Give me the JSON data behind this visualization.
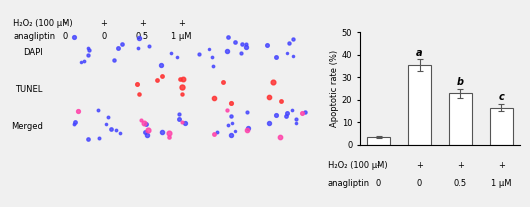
{
  "values": [
    3.5,
    35.5,
    23.0,
    16.5
  ],
  "errors": [
    0.5,
    2.5,
    2.0,
    1.5
  ],
  "bar_color": "#ffffff",
  "bar_edgecolor": "#555555",
  "bar_linewidth": 0.8,
  "ylim": [
    0,
    50
  ],
  "yticks": [
    0,
    10,
    20,
    30,
    40,
    50
  ],
  "ylabel": "Apoptotic rate (%)",
  "ylabel_fontsize": 6,
  "tick_fontsize": 6,
  "bar_width": 0.55,
  "bar_annotations": [
    "",
    "a",
    "b",
    "c"
  ],
  "annotation_fontsize": 7,
  "x_row1_label": "H₂O₂ (100 μM)",
  "x_row1_values": [
    "-",
    "+",
    "+",
    "+"
  ],
  "x_row2_label": "anagliptin",
  "x_row2_values": [
    "0",
    "0",
    "0.5",
    "1 μM"
  ],
  "xrow_fontsize": 6,
  "errorbar_color": "#555555",
  "errorbar_capsize": 2,
  "errorbar_linewidth": 0.8,
  "figure_facecolor": "#f0f0f0",
  "axes_facecolor": "#f0f0f0",
  "h2o2_header": "H₂O₂ (100 μM)",
  "h2o2_values": [
    "-",
    "+",
    "+",
    "+"
  ],
  "anagliptin_header": "anagliptin",
  "anagliptin_values": [
    "0",
    "0",
    "0.5",
    "1 μM"
  ],
  "row_labels": [
    "DAPI",
    "TUNEL",
    "Merged"
  ],
  "dapi_color": "#0000cc",
  "tunel_color": "#cc0000",
  "merged_color_dapi": "#0000cc",
  "merged_color_tunel": "#cc0000",
  "header_fontsize": 6,
  "row_label_fontsize": 6,
  "n_cols": 4,
  "n_rows": 3,
  "cell_bg": "#000000",
  "grid_color": "#888888"
}
